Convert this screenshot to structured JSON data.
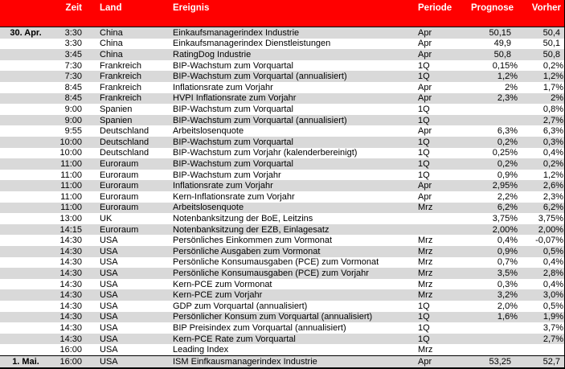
{
  "colors": {
    "header_bg": "#ff0000",
    "header_text": "#ffffff",
    "row_bg": "#ffffff",
    "row_alt_bg": "#d9d9d9",
    "text": "#000000",
    "border": "#000000"
  },
  "chart_data": {
    "type": "table",
    "columns": [
      "",
      "Zeit",
      "Land",
      "Ereignis",
      "Periode",
      "Prognose",
      "Vorher"
    ],
    "date_groups": [
      "30. Apr.",
      "1. Mai."
    ],
    "rows": [
      [
        "30. Apr.",
        "3:30",
        "China",
        "Einkaufsmanagerindex Industrie",
        "Apr",
        "50,15",
        "50,4"
      ],
      [
        "",
        "3:30",
        "China",
        "Einkaufsmanagerindex Dienstleistungen",
        "Apr",
        "49,9",
        "50,1"
      ],
      [
        "",
        "3:45",
        "China",
        "RatingDog Industrie",
        "Apr",
        "50,8",
        "50,8"
      ],
      [
        "",
        "7:30",
        "Frankreich",
        "BIP-Wachstum zum Vorquartal",
        "1Q",
        "0,15%",
        "0,2%"
      ],
      [
        "",
        "7:30",
        "Frankreich",
        "BIP-Wachstum zum Vorquartal (annualisiert)",
        "1Q",
        "1,2%",
        "1,2%"
      ],
      [
        "",
        "8:45",
        "Frankreich",
        "Inflationsrate zum Vorjahr",
        "Apr",
        "2%",
        "1,7%"
      ],
      [
        "",
        "8:45",
        "Frankreich",
        "HVPI Inflationsrate zum Vorjahr",
        "Apr",
        "2,3%",
        "2%"
      ],
      [
        "",
        "9:00",
        "Spanien",
        "BIP-Wachstum zum Vorquartal",
        "1Q",
        "",
        "0,8%"
      ],
      [
        "",
        "9:00",
        "Spanien",
        "BIP-Wachstum zum Vorquartal (annualisiert)",
        "1Q",
        "",
        "2,7%"
      ],
      [
        "",
        "9:55",
        "Deutschland",
        "Arbeitslosenquote",
        "Apr",
        "6,3%",
        "6,3%"
      ],
      [
        "",
        "10:00",
        "Deutschland",
        "BIP-Wachstum zum Vorquartal",
        "1Q",
        "0,2%",
        "0,3%"
      ],
      [
        "",
        "10:00",
        "Deutschland",
        "BIP-Wachstum zum Vorjahr (kalenderbereinigt)",
        "1Q",
        "0,25%",
        "0,4%"
      ],
      [
        "",
        "11:00",
        "Euroraum",
        "BIP-Wachstum zum Vorquartal",
        "1Q",
        "0,2%",
        "0,2%"
      ],
      [
        "",
        "11:00",
        "Euroraum",
        "BIP-Wachstum zum Vorjahr",
        "1Q",
        "0,9%",
        "1,2%"
      ],
      [
        "",
        "11:00",
        "Euroraum",
        "Inflationsrate zum Vorjahr",
        "Apr",
        "2,95%",
        "2,6%"
      ],
      [
        "",
        "11:00",
        "Euroraum",
        "Kern-Inflationsrate zum Vorjahr",
        "Apr",
        "2,2%",
        "2,3%"
      ],
      [
        "",
        "11:00",
        "Euroraum",
        "Arbeitslosenquote",
        "Mrz",
        "6,2%",
        "6,2%"
      ],
      [
        "",
        "13:00",
        "UK",
        "Notenbanksitzung der BoE, Leitzins",
        "",
        "3,75%",
        "3,75%"
      ],
      [
        "",
        "14:15",
        "Euroraum",
        "Notenbanksitzung der EZB, Einlagesatz",
        "",
        "2,00%",
        "2,00%"
      ],
      [
        "",
        "14:30",
        "USA",
        "Persönliches Einkommen zum Vormonat",
        "Mrz",
        "0,4%",
        "-0,07%"
      ],
      [
        "",
        "14:30",
        "USA",
        "Persönliche Ausgaben zum Vormonat",
        "Mrz",
        "0,9%",
        "0,5%"
      ],
      [
        "",
        "14:30",
        "USA",
        "Persönliche Konsumausgaben (PCE) zum Vormonat",
        "Mrz",
        "0,7%",
        "0,4%"
      ],
      [
        "",
        "14:30",
        "USA",
        "Persönliche Konsumausgaben (PCE) zum Vorjahr",
        "Mrz",
        "3,5%",
        "2,8%"
      ],
      [
        "",
        "14:30",
        "USA",
        "Kern-PCE zum Vormonat",
        "Mrz",
        "0,3%",
        "0,4%"
      ],
      [
        "",
        "14:30",
        "USA",
        "Kern-PCE zum Vorjahr",
        "Mrz",
        "3,2%",
        "3,0%"
      ],
      [
        "",
        "14:30",
        "USA",
        "GDP zum Vorquartal (annualisiert)",
        "1Q",
        "2,0%",
        "0,5%"
      ],
      [
        "",
        "14:30",
        "USA",
        "Persönlicher Konsum zum Vorquartal (annualisiert)",
        "1Q",
        "1,6%",
        "1,9%"
      ],
      [
        "",
        "14:30",
        "USA",
        "BIP Preisindex zum Vorquartal (annualisiert)",
        "1Q",
        "",
        "3,7%"
      ],
      [
        "",
        "14:30",
        "USA",
        "Kern-PCE Rate zum Vorquartal",
        "1Q",
        "",
        "2,7%"
      ],
      [
        "",
        "16:00",
        "USA",
        "Leading Index",
        "Mrz",
        "",
        ""
      ],
      [
        "1. Mai.",
        "16:00",
        "USA",
        "ISM Einfkausmanagerindex Industrie",
        "Apr",
        "53,25",
        "52,7"
      ]
    ]
  }
}
